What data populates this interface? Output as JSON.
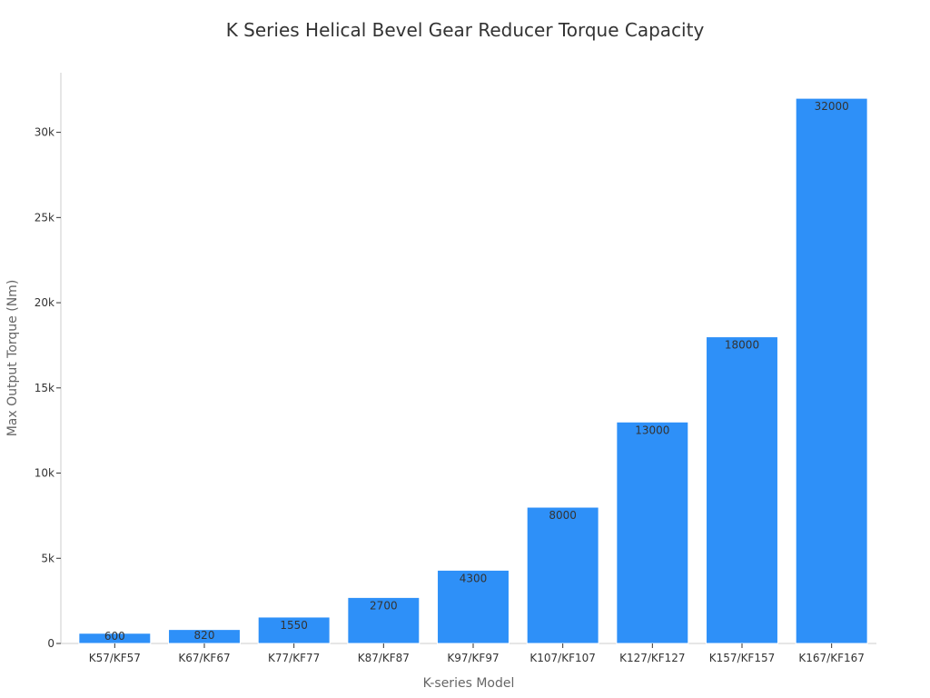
{
  "chart_data": {
    "type": "bar",
    "title": "K Series Helical Bevel Gear Reducer Torque Capacity",
    "xlabel": "K-series Model",
    "ylabel": "Max Output Torque (Nm)",
    "categories": [
      "K57/KF57",
      "K67/KF67",
      "K77/KF77",
      "K87/KF87",
      "K97/KF97",
      "K107/KF107",
      "K127/KF127",
      "K157/KF157",
      "K167/KF167"
    ],
    "values": [
      600,
      820,
      1550,
      2700,
      4300,
      8000,
      13000,
      18000,
      32000
    ],
    "data_labels": [
      "600",
      "820",
      "1550",
      "2700",
      "4300",
      "8000",
      "13000",
      "18000",
      "32000"
    ],
    "ylim": [
      0,
      33500
    ],
    "yticks": [
      0,
      5000,
      10000,
      15000,
      20000,
      25000,
      30000
    ],
    "ytick_labels": [
      "0",
      "5k",
      "10k",
      "15k",
      "20k",
      "25k",
      "30k"
    ],
    "bar_color": "#2e90f8",
    "grid": false,
    "legend": "none"
  }
}
